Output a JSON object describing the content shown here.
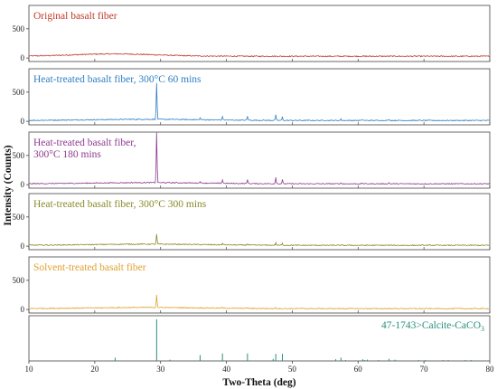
{
  "chart_data": {
    "type": "line",
    "xlabel": "Two-Theta (deg)",
    "ylabel": "Intensity (Counts)",
    "xlim": [
      10,
      80
    ],
    "x_ticks": [
      10,
      20,
      30,
      40,
      50,
      60,
      70,
      80
    ],
    "y_ticks": [
      0,
      500
    ],
    "grid": false,
    "panels": [
      {
        "label": "Original basalt fiber",
        "color": "#c0392b",
        "ylim": [
          -60,
          900
        ],
        "baseline": 30,
        "noise": 9,
        "hump": {
          "center": 23,
          "width": 9,
          "height": 40
        },
        "peaks": []
      },
      {
        "label": "Heat-treated basalt fiber, 300°C 60 mins",
        "color": "#2f7fc1",
        "ylim": [
          -60,
          900
        ],
        "baseline": 15,
        "noise": 8,
        "hump": {
          "center": 28,
          "width": 12,
          "height": 20
        },
        "peaks": [
          {
            "x": 29.4,
            "y": 620
          },
          {
            "x": 36.0,
            "y": 30
          },
          {
            "x": 39.4,
            "y": 60
          },
          {
            "x": 43.2,
            "y": 70
          },
          {
            "x": 47.5,
            "y": 90
          },
          {
            "x": 48.5,
            "y": 60
          },
          {
            "x": 57.4,
            "y": 20
          },
          {
            "x": 60.7,
            "y": 15
          },
          {
            "x": 64.7,
            "y": 20
          }
        ]
      },
      {
        "label_lines": [
          "Heat-treated basalt fiber,",
          "300°C 180 mins"
        ],
        "color": "#8e3b8e",
        "ylim": [
          -60,
          900
        ],
        "baseline": 15,
        "noise": 8,
        "hump": {
          "center": 28,
          "width": 12,
          "height": 20
        },
        "peaks": [
          {
            "x": 29.4,
            "y": 850
          },
          {
            "x": 36.0,
            "y": 30
          },
          {
            "x": 39.4,
            "y": 60
          },
          {
            "x": 43.2,
            "y": 70
          },
          {
            "x": 47.5,
            "y": 110
          },
          {
            "x": 48.5,
            "y": 70
          },
          {
            "x": 57.4,
            "y": 20
          },
          {
            "x": 60.7,
            "y": 15
          },
          {
            "x": 64.7,
            "y": 20
          }
        ]
      },
      {
        "label": "Heat-treated basalt fiber, 300°C 300 mins",
        "color": "#8a8a2a",
        "ylim": [
          -60,
          900
        ],
        "baseline": 15,
        "noise": 8,
        "hump": {
          "center": 28,
          "width": 12,
          "height": 20
        },
        "peaks": [
          {
            "x": 29.4,
            "y": 170
          },
          {
            "x": 39.4,
            "y": 25
          },
          {
            "x": 43.2,
            "y": 25
          },
          {
            "x": 47.5,
            "y": 40
          },
          {
            "x": 48.5,
            "y": 30
          }
        ]
      },
      {
        "label": "Solvent-treated basalt fiber",
        "color": "#e0a030",
        "ylim": [
          -60,
          900
        ],
        "baseline": 15,
        "noise": 8,
        "hump": {
          "center": 28,
          "width": 12,
          "height": 20
        },
        "peaks": [
          {
            "x": 29.4,
            "y": 220
          },
          {
            "x": 39.4,
            "y": 15
          },
          {
            "x": 43.2,
            "y": 15
          },
          {
            "x": 47.5,
            "y": 20
          }
        ]
      }
    ],
    "reference": {
      "label": "47-1743>Calcite-CaCO",
      "label_sub": "3",
      "color": "#2a8f7a",
      "ymax": 100,
      "sticks": [
        {
          "x": 23.1,
          "y": 8
        },
        {
          "x": 29.4,
          "y": 100
        },
        {
          "x": 31.4,
          "y": 3
        },
        {
          "x": 36.0,
          "y": 14
        },
        {
          "x": 39.4,
          "y": 18
        },
        {
          "x": 43.2,
          "y": 18
        },
        {
          "x": 47.1,
          "y": 5
        },
        {
          "x": 47.5,
          "y": 17
        },
        {
          "x": 48.5,
          "y": 17
        },
        {
          "x": 56.6,
          "y": 4
        },
        {
          "x": 57.4,
          "y": 8
        },
        {
          "x": 58.1,
          "y": 2
        },
        {
          "x": 60.7,
          "y": 4
        },
        {
          "x": 61.0,
          "y": 2
        },
        {
          "x": 61.4,
          "y": 3
        },
        {
          "x": 63.1,
          "y": 2
        },
        {
          "x": 64.7,
          "y": 5
        },
        {
          "x": 65.6,
          "y": 3
        },
        {
          "x": 69.2,
          "y": 2
        },
        {
          "x": 70.2,
          "y": 2
        },
        {
          "x": 72.9,
          "y": 2
        },
        {
          "x": 73.7,
          "y": 2
        },
        {
          "x": 76.3,
          "y": 2
        },
        {
          "x": 77.2,
          "y": 2
        }
      ]
    }
  }
}
